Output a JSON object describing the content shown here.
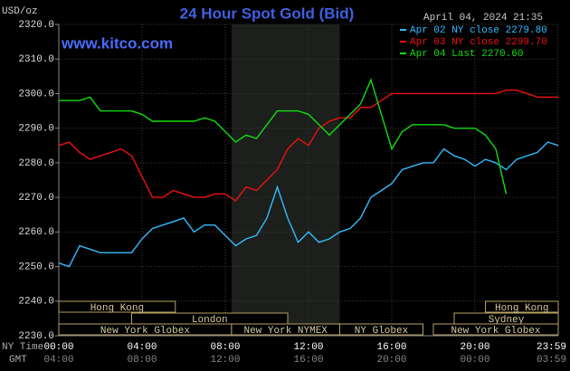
{
  "chart_data": {
    "type": "line",
    "title": "24 Hour Spot Gold (Bid)",
    "y_unit": "USD/oz",
    "timestamp": "April 04, 2024 21:35",
    "watermark": "www.kitco.com",
    "x_axis_label": "NY Time",
    "x2_axis_label": "GMT",
    "x": [
      0,
      0.5,
      1,
      1.5,
      2,
      2.5,
      3,
      3.5,
      4,
      4.5,
      5,
      5.5,
      6,
      6.5,
      7,
      7.5,
      8,
      8.5,
      9,
      9.5,
      10,
      10.5,
      11,
      11.5,
      12,
      12.5,
      13,
      13.5,
      14,
      14.5,
      15,
      15.5,
      16,
      16.5,
      17,
      17.5,
      18,
      18.5,
      19,
      19.5,
      20,
      20.5,
      21,
      21.5,
      22,
      22.5,
      23,
      23.5,
      24
    ],
    "series": [
      {
        "name": "Apr 02 NY close 2279.80",
        "color": "#33bbff",
        "values": [
          2251,
          2250,
          2256,
          2255,
          2254,
          2254,
          2254,
          2254,
          2258,
          2261,
          2262,
          2263,
          2264,
          2260,
          2262,
          2262,
          2259,
          2256,
          2258,
          2259,
          2264,
          2273,
          2264,
          2257,
          2260,
          2257,
          2258,
          2260,
          2261,
          2264,
          2270,
          2272,
          2274,
          2278,
          2279,
          2280,
          2280,
          2284,
          2282,
          2281,
          2279,
          2281,
          2280,
          2278,
          2281,
          2282,
          2283,
          2286,
          2285
        ]
      },
      {
        "name": "Apr 03 NY close 2299.70",
        "color": "#ee1111",
        "values": [
          2285,
          2286,
          2283,
          2281,
          2282,
          2283,
          2284,
          2282,
          2276,
          2270,
          2270,
          2272,
          2271,
          2270,
          2270,
          2271,
          2271,
          2269,
          2273,
          2272,
          2275,
          2278,
          2284,
          2287,
          2285,
          2290,
          2292,
          2293,
          2293,
          2296,
          2296,
          2298,
          2300,
          2300,
          2300,
          2300,
          2300,
          2300,
          2300,
          2300,
          2300,
          2300,
          2300,
          2301,
          2301,
          2300,
          2299,
          2299,
          2299
        ]
      },
      {
        "name": "Apr 04 Last 2270.60",
        "color": "#11dd11",
        "values": [
          2298,
          2298,
          2298,
          2299,
          2295,
          2295,
          2295,
          2295,
          2294,
          2292,
          2292,
          2292,
          2292,
          2292,
          2293,
          2292,
          2289,
          2286,
          2288,
          2287,
          2291,
          2295,
          2295,
          2295,
          2294,
          2291,
          2288,
          2291,
          2294,
          2297,
          2304,
          2294,
          2284,
          2289,
          2291,
          2291,
          2291,
          2291,
          2290,
          2290,
          2290,
          2288,
          2284,
          2271,
          null,
          null,
          null,
          null,
          null
        ]
      }
    ],
    "xlim": [
      0,
      24
    ],
    "xticks": [
      {
        "value": 0,
        "label": "00:00"
      },
      {
        "value": 4,
        "label": "04:00"
      },
      {
        "value": 8,
        "label": "08:00"
      },
      {
        "value": 12,
        "label": "12:00"
      },
      {
        "value": 16,
        "label": "16:00"
      },
      {
        "value": 20,
        "label": "20:00"
      },
      {
        "value": 23.98,
        "label": "23:59"
      }
    ],
    "x2ticks": [
      "04:00",
      "08:00",
      "12:00",
      "16:00",
      "20:00",
      "00:00",
      "03:59"
    ],
    "ylim": [
      2230,
      2320
    ],
    "yticks": [
      {
        "value": 2230,
        "label": "2230.0"
      },
      {
        "value": 2240,
        "label": "2240.0"
      },
      {
        "value": 2250,
        "label": "2250.0"
      },
      {
        "value": 2260,
        "label": "2260.0"
      },
      {
        "value": 2270,
        "label": "2270.0"
      },
      {
        "value": 2280,
        "label": "2280.0"
      },
      {
        "value": 2290,
        "label": "2290.0"
      },
      {
        "value": 2300,
        "label": "2300.0"
      },
      {
        "value": 2310,
        "label": "2310.0"
      },
      {
        "value": 2320,
        "label": "2320.0"
      }
    ],
    "grid": true,
    "sessions": [
      [
        {
          "name": "Hong Kong",
          "start": 0,
          "end": 5.6
        },
        {
          "name": "Hong Kong",
          "start": 20.5,
          "end": 24
        }
      ],
      [
        {
          "name": "London",
          "start": 3.5,
          "end": 11
        },
        {
          "name": "Sydney",
          "start": 19,
          "end": 24
        }
      ],
      [
        {
          "name": "New York Globex",
          "start": 0,
          "end": 8.3
        },
        {
          "name": "New York NYMEX",
          "start": 8.3,
          "end": 13.5
        },
        {
          "name": "NY Globex",
          "start": 13.5,
          "end": 17.5
        },
        {
          "name": "New York Globex",
          "start": 18,
          "end": 24
        }
      ]
    ]
  }
}
